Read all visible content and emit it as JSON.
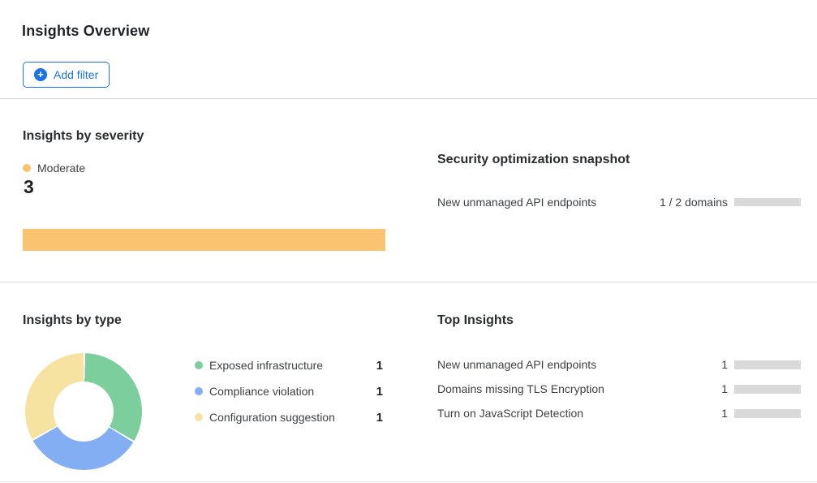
{
  "page": {
    "title": "Insights Overview"
  },
  "toolbar": {
    "add_filter_label": "Add filter",
    "plus_glyph": "+",
    "accent_color": "#1A73E8"
  },
  "severity": {
    "heading": "Insights by severity",
    "legend_label": "Moderate",
    "legend_color": "#FAC36F",
    "count": "3",
    "bar_color": "#FAC36F"
  },
  "snapshot": {
    "heading": "Security optimization snapshot",
    "row": {
      "label": "New unmanaged API endpoints",
      "value_label": "1 / 2 domains",
      "fraction": 0.5,
      "fill_color": "#E8820D",
      "track_color": "#D9D9D9"
    }
  },
  "insights_by_type": {
    "heading": "Insights by type",
    "items": [
      {
        "label": "Exposed infrastructure",
        "value": "1",
        "color": "#7DCE9D"
      },
      {
        "label": "Compliance violation",
        "value": "1",
        "color": "#84AEF3"
      },
      {
        "label": "Configuration suggestion",
        "value": "1",
        "color": "#F7E3A1"
      }
    ]
  },
  "top_insights": {
    "heading": "Top Insights",
    "bar_color": "#1A73E8",
    "track_color": "#D9D9D9",
    "rows": [
      {
        "label": "New unmanaged API endpoints",
        "value": "1",
        "fraction": 0.33
      },
      {
        "label": "Domains missing TLS Encryption",
        "value": "1",
        "fraction": 0.33
      },
      {
        "label": "Turn on JavaScript Detection",
        "value": "1",
        "fraction": 0.33
      }
    ]
  },
  "chart_data": [
    {
      "type": "bar",
      "title": "Insights by severity",
      "categories": [
        "Moderate"
      ],
      "values": [
        3
      ],
      "orientation": "horizontal",
      "colors": [
        "#FAC36F"
      ],
      "legend_position": "top"
    },
    {
      "type": "bar",
      "title": "Security optimization snapshot",
      "categories": [
        "New unmanaged API endpoints"
      ],
      "values": [
        1
      ],
      "max_values": [
        2
      ],
      "value_labels": [
        "1 / 2 domains"
      ],
      "colors": [
        "#E8820D"
      ]
    },
    {
      "type": "pie",
      "title": "Insights by type",
      "categories": [
        "Exposed infrastructure",
        "Compliance violation",
        "Configuration suggestion"
      ],
      "values": [
        1,
        1,
        1
      ],
      "colors": [
        "#7DCE9D",
        "#84AEF3",
        "#F7E3A1"
      ],
      "donut": true,
      "legend_position": "right"
    },
    {
      "type": "bar",
      "title": "Top Insights",
      "categories": [
        "New unmanaged API endpoints",
        "Domains missing TLS Encryption",
        "Turn on JavaScript Detection"
      ],
      "values": [
        1,
        1,
        1
      ],
      "colors": [
        "#1A73E8",
        "#1A73E8",
        "#1A73E8"
      ],
      "orientation": "horizontal"
    }
  ]
}
